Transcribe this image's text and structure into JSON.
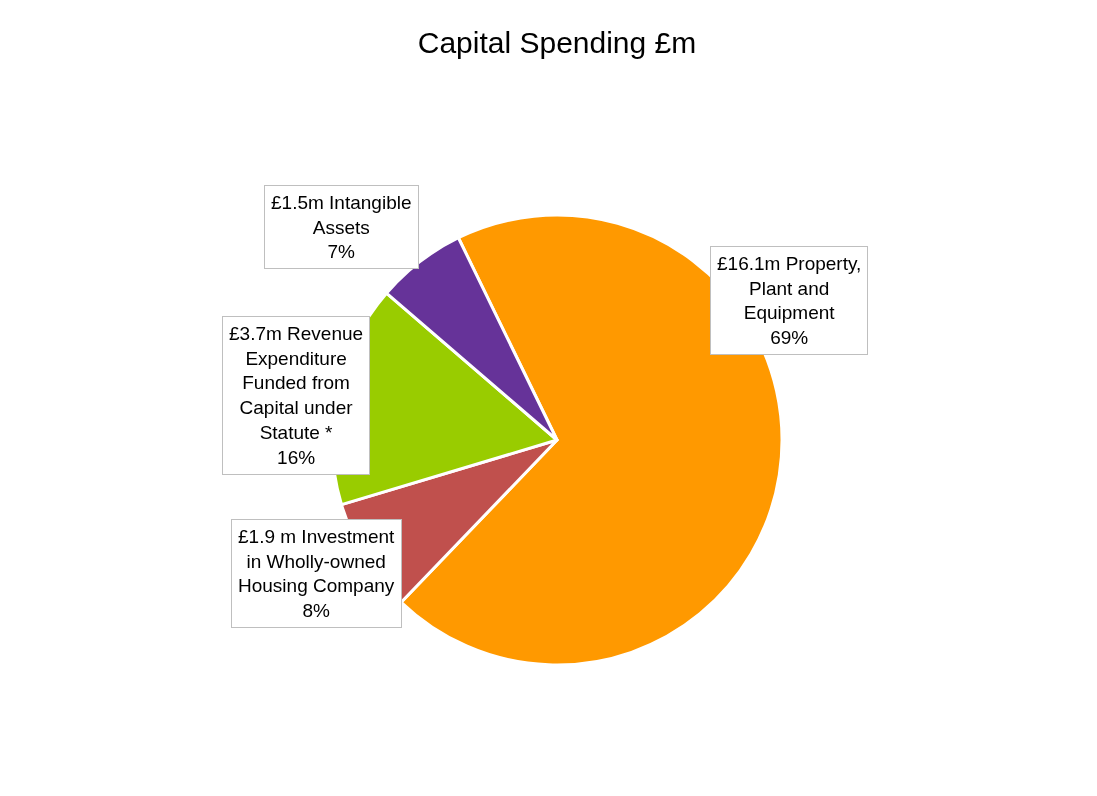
{
  "chart_data": {
    "type": "pie",
    "title": "Capital Spending £m",
    "categories": [
      "£16.1m Property,\nPlant and\nEquipment\n69%",
      "£1.9 m Investment\nin Wholly-owned\nHousing Company\n8%",
      "£3.7m Revenue\nExpenditure\nFunded from\nCapital under\nStatute *\n16%",
      "£1.5m Intangible\nAssets\n7%"
    ],
    "values": [
      16.1,
      1.9,
      3.7,
      1.5
    ],
    "colors": [
      "#ff9900",
      "#c0504d",
      "#99cc00",
      "#663399"
    ],
    "legend": false
  }
}
